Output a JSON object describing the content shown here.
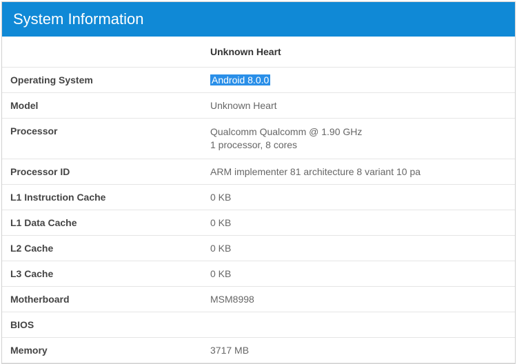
{
  "panel": {
    "title": "System Information",
    "header_bg": "#1089d6",
    "header_fg": "#ffffff",
    "border_color": "#d0d0d0",
    "row_border_color": "#e5e5e5"
  },
  "device_header": "Unknown Heart",
  "highlight": {
    "bg": "#2a8fe8",
    "fg": "#ffffff"
  },
  "rows": {
    "os": {
      "label": "Operating System",
      "value": "Android 8.0.0",
      "highlighted": true
    },
    "model": {
      "label": "Model",
      "value": "Unknown Heart"
    },
    "processor": {
      "label": "Processor",
      "line1": "Qualcomm Qualcomm @ 1.90 GHz",
      "line2": "1 processor, 8 cores"
    },
    "processor_id": {
      "label": "Processor ID",
      "value": "ARM implementer 81 architecture 8 variant 10 pa"
    },
    "l1i": {
      "label": "L1 Instruction Cache",
      "value": "0 KB"
    },
    "l1d": {
      "label": "L1 Data Cache",
      "value": "0 KB"
    },
    "l2": {
      "label": "L2 Cache",
      "value": "0 KB"
    },
    "l3": {
      "label": "L3 Cache",
      "value": "0 KB"
    },
    "mobo": {
      "label": "Motherboard",
      "value": "MSM8998"
    },
    "bios": {
      "label": "BIOS",
      "value": ""
    },
    "memory": {
      "label": "Memory",
      "value": "3717 MB"
    }
  }
}
